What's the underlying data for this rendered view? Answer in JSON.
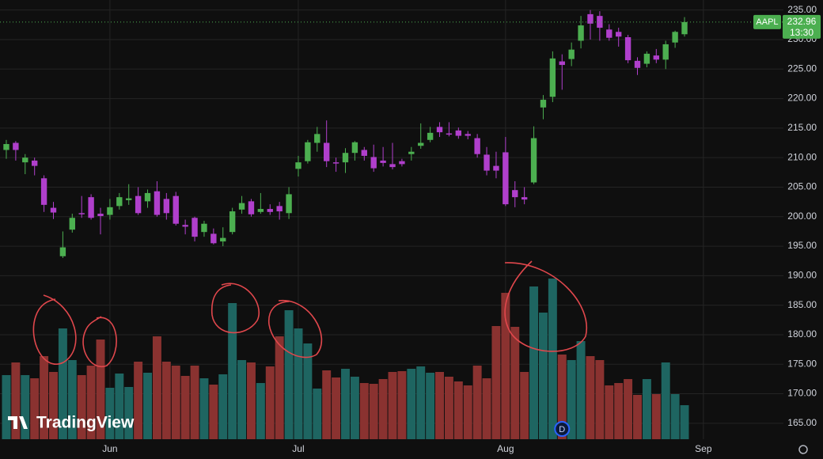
{
  "chart_data": {
    "type": "candlestick",
    "symbol": "AAPL",
    "last_price": 232.96,
    "countdown": "13:30",
    "watermark": "TradingView",
    "event_marker": {
      "label": "D",
      "index": 59
    },
    "up_color": "#4caf50",
    "down_color": "#b03fcc",
    "volume_up_color": "#1e6561",
    "volume_down_color": "#8a3230",
    "grid": true,
    "ylim": [
      162.3,
      236.7
    ],
    "xlim": [
      -0.67,
      82.5
    ],
    "yticks": [
      {
        "value": 165,
        "label": "165.00"
      },
      {
        "value": 170,
        "label": "170.00"
      },
      {
        "value": 175,
        "label": "175.00"
      },
      {
        "value": 180,
        "label": "180.00"
      },
      {
        "value": 185,
        "label": "185.00"
      },
      {
        "value": 190,
        "label": "190.00"
      },
      {
        "value": 195,
        "label": "195.00"
      },
      {
        "value": 200,
        "label": "200.00"
      },
      {
        "value": 205,
        "label": "205.00"
      },
      {
        "value": 210,
        "label": "210.00"
      },
      {
        "value": 215,
        "label": "215.00"
      },
      {
        "value": 220,
        "label": "220.00"
      },
      {
        "value": 225,
        "label": "225.00"
      },
      {
        "value": 230,
        "label": "230.00"
      },
      {
        "value": 235,
        "label": "235.00"
      }
    ],
    "xticks": [
      {
        "value": 11,
        "label": "Jun"
      },
      {
        "value": 31,
        "label": "Jul"
      },
      {
        "value": 53,
        "label": "Aug"
      },
      {
        "value": 74,
        "label": "Sep"
      }
    ],
    "open": [
      211.3,
      212.5,
      209.2,
      209.5,
      206.5,
      201.5,
      193.3,
      197.8,
      200.6,
      203.3,
      200.5,
      200.3,
      201.8,
      202.8,
      203.5,
      202.6,
      204.3,
      203,
      203.5,
      198.6,
      199.8,
      197.4,
      197.1,
      195.8,
      197.4,
      201.2,
      202.6,
      200.8,
      201.3,
      201.8,
      200.6,
      208.1,
      209.4,
      212.5,
      212.5,
      209.2,
      209.2,
      210.8,
      211.3,
      210.1,
      209.5,
      208.9,
      209.4,
      210.6,
      212,
      213,
      215.2,
      214.1,
      214.6,
      214,
      213.3,
      210.5,
      208.6,
      210.9,
      204.5,
      203.3,
      205.8,
      218.5,
      220.3,
      226.3,
      226.7,
      229.8,
      234.3,
      234,
      231.7,
      231.3,
      230.4,
      226.4,
      225.9,
      227.3,
      226.6,
      229.5,
      230.9
    ],
    "high": [
      213,
      212.8,
      210.6,
      210,
      207,
      202.5,
      197.5,
      200.5,
      203.5,
      203.8,
      201.5,
      203,
      204,
      205.5,
      205,
      204.6,
      206,
      204,
      204.2,
      199.5,
      200,
      199.3,
      198,
      198.2,
      201.5,
      203.5,
      203,
      204,
      202.1,
      202.5,
      205,
      210.3,
      213,
      215.2,
      216.3,
      210,
      211.6,
      212.8,
      211.8,
      212.2,
      211.8,
      212.5,
      209.8,
      211.8,
      215.8,
      215.2,
      216,
      216,
      215.1,
      214.5,
      214,
      211.8,
      211,
      213.5,
      206,
      205,
      215.3,
      220.6,
      228,
      227.5,
      229.5,
      234,
      235,
      234.8,
      232.6,
      232,
      230.8,
      227,
      228,
      228.4,
      229.8,
      231.5,
      233.8
    ],
    "low": [
      209.8,
      209.5,
      207.2,
      207,
      200.8,
      199.6,
      193,
      197.3,
      199.8,
      199.5,
      197,
      199.5,
      201.2,
      202,
      200.3,
      201.5,
      200,
      199.5,
      198.5,
      197,
      195.8,
      196.6,
      195.3,
      195,
      197,
      200.5,
      200,
      200.5,
      200.3,
      199.5,
      199.6,
      206.8,
      209,
      211,
      208.4,
      207.6,
      207.4,
      209.5,
      209.5,
      207.6,
      208.5,
      208,
      208.5,
      209.5,
      211.5,
      212.6,
      213.5,
      213.6,
      213.2,
      213.1,
      210,
      207,
      206.5,
      201.8,
      201.6,
      202.1,
      205.5,
      216.5,
      219.4,
      221.5,
      225.5,
      228.5,
      230,
      229.8,
      229.8,
      228.8,
      226,
      224,
      225.3,
      226,
      225,
      228.6,
      230.5
    ],
    "close": [
      212.3,
      211.3,
      210,
      208.6,
      202,
      200.7,
      194.8,
      199.8,
      200.4,
      199.8,
      200.1,
      201.6,
      203.3,
      203.1,
      200.6,
      204,
      200.3,
      200.6,
      198.8,
      198.3,
      196.6,
      198.8,
      195.5,
      196.4,
      200.9,
      202.3,
      200.4,
      201.3,
      200.8,
      200.9,
      203.8,
      209.2,
      212.6,
      214,
      209.4,
      209,
      210.8,
      212.6,
      210.3,
      208.2,
      209.1,
      208.4,
      208.9,
      211,
      212.5,
      214.2,
      214.3,
      213.9,
      213.7,
      213.7,
      210.6,
      207.8,
      207.8,
      202.1,
      203.3,
      202.9,
      213.3,
      219.8,
      226.8,
      225.7,
      228.3,
      232.4,
      232.7,
      232,
      230.3,
      230.5,
      226.5,
      225.2,
      227.6,
      226.6,
      229.2,
      231.3,
      232.96
    ],
    "volume": [
      81,
      97,
      81,
      77,
      105,
      85,
      140,
      100,
      81,
      93,
      126,
      65,
      83,
      66,
      98,
      84,
      130,
      98,
      93,
      80,
      93,
      77,
      69,
      82,
      172,
      100,
      97,
      71,
      92,
      130,
      163,
      140,
      121,
      64,
      87,
      78,
      89,
      79,
      71,
      70,
      76,
      85,
      86,
      89,
      92,
      84,
      85,
      79,
      73,
      68,
      93,
      77,
      143,
      185,
      142,
      85,
      193,
      160,
      203,
      107,
      100,
      124,
      105,
      100,
      68,
      71,
      76,
      56,
      76,
      57,
      97,
      57,
      43
    ]
  }
}
